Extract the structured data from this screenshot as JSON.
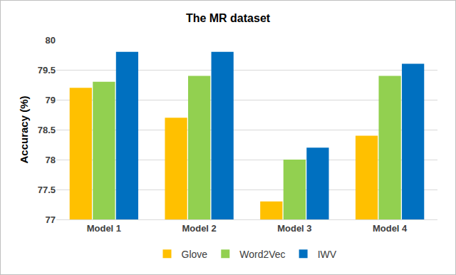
{
  "chart_data": {
    "type": "bar",
    "title": "The MR dataset",
    "y_label": "Accuracy (%)",
    "categories": [
      "Model 1",
      "Model 2",
      "Model 3",
      "Model 4"
    ],
    "series": [
      {
        "name": "Glove",
        "color": "#FFC000",
        "values": [
          79.2,
          78.7,
          77.3,
          78.4
        ]
      },
      {
        "name": "Word2Vec",
        "color": "#92D050",
        "values": [
          79.3,
          79.4,
          78.0,
          79.4
        ]
      },
      {
        "name": "IWV",
        "color": "#0070C0",
        "values": [
          79.8,
          79.8,
          78.2,
          79.6
        ]
      }
    ],
    "ylim": [
      77,
      80
    ],
    "yticks": [
      77,
      77.5,
      78,
      78.5,
      79,
      79.5,
      80
    ],
    "grid": true,
    "legend": "bottom"
  }
}
